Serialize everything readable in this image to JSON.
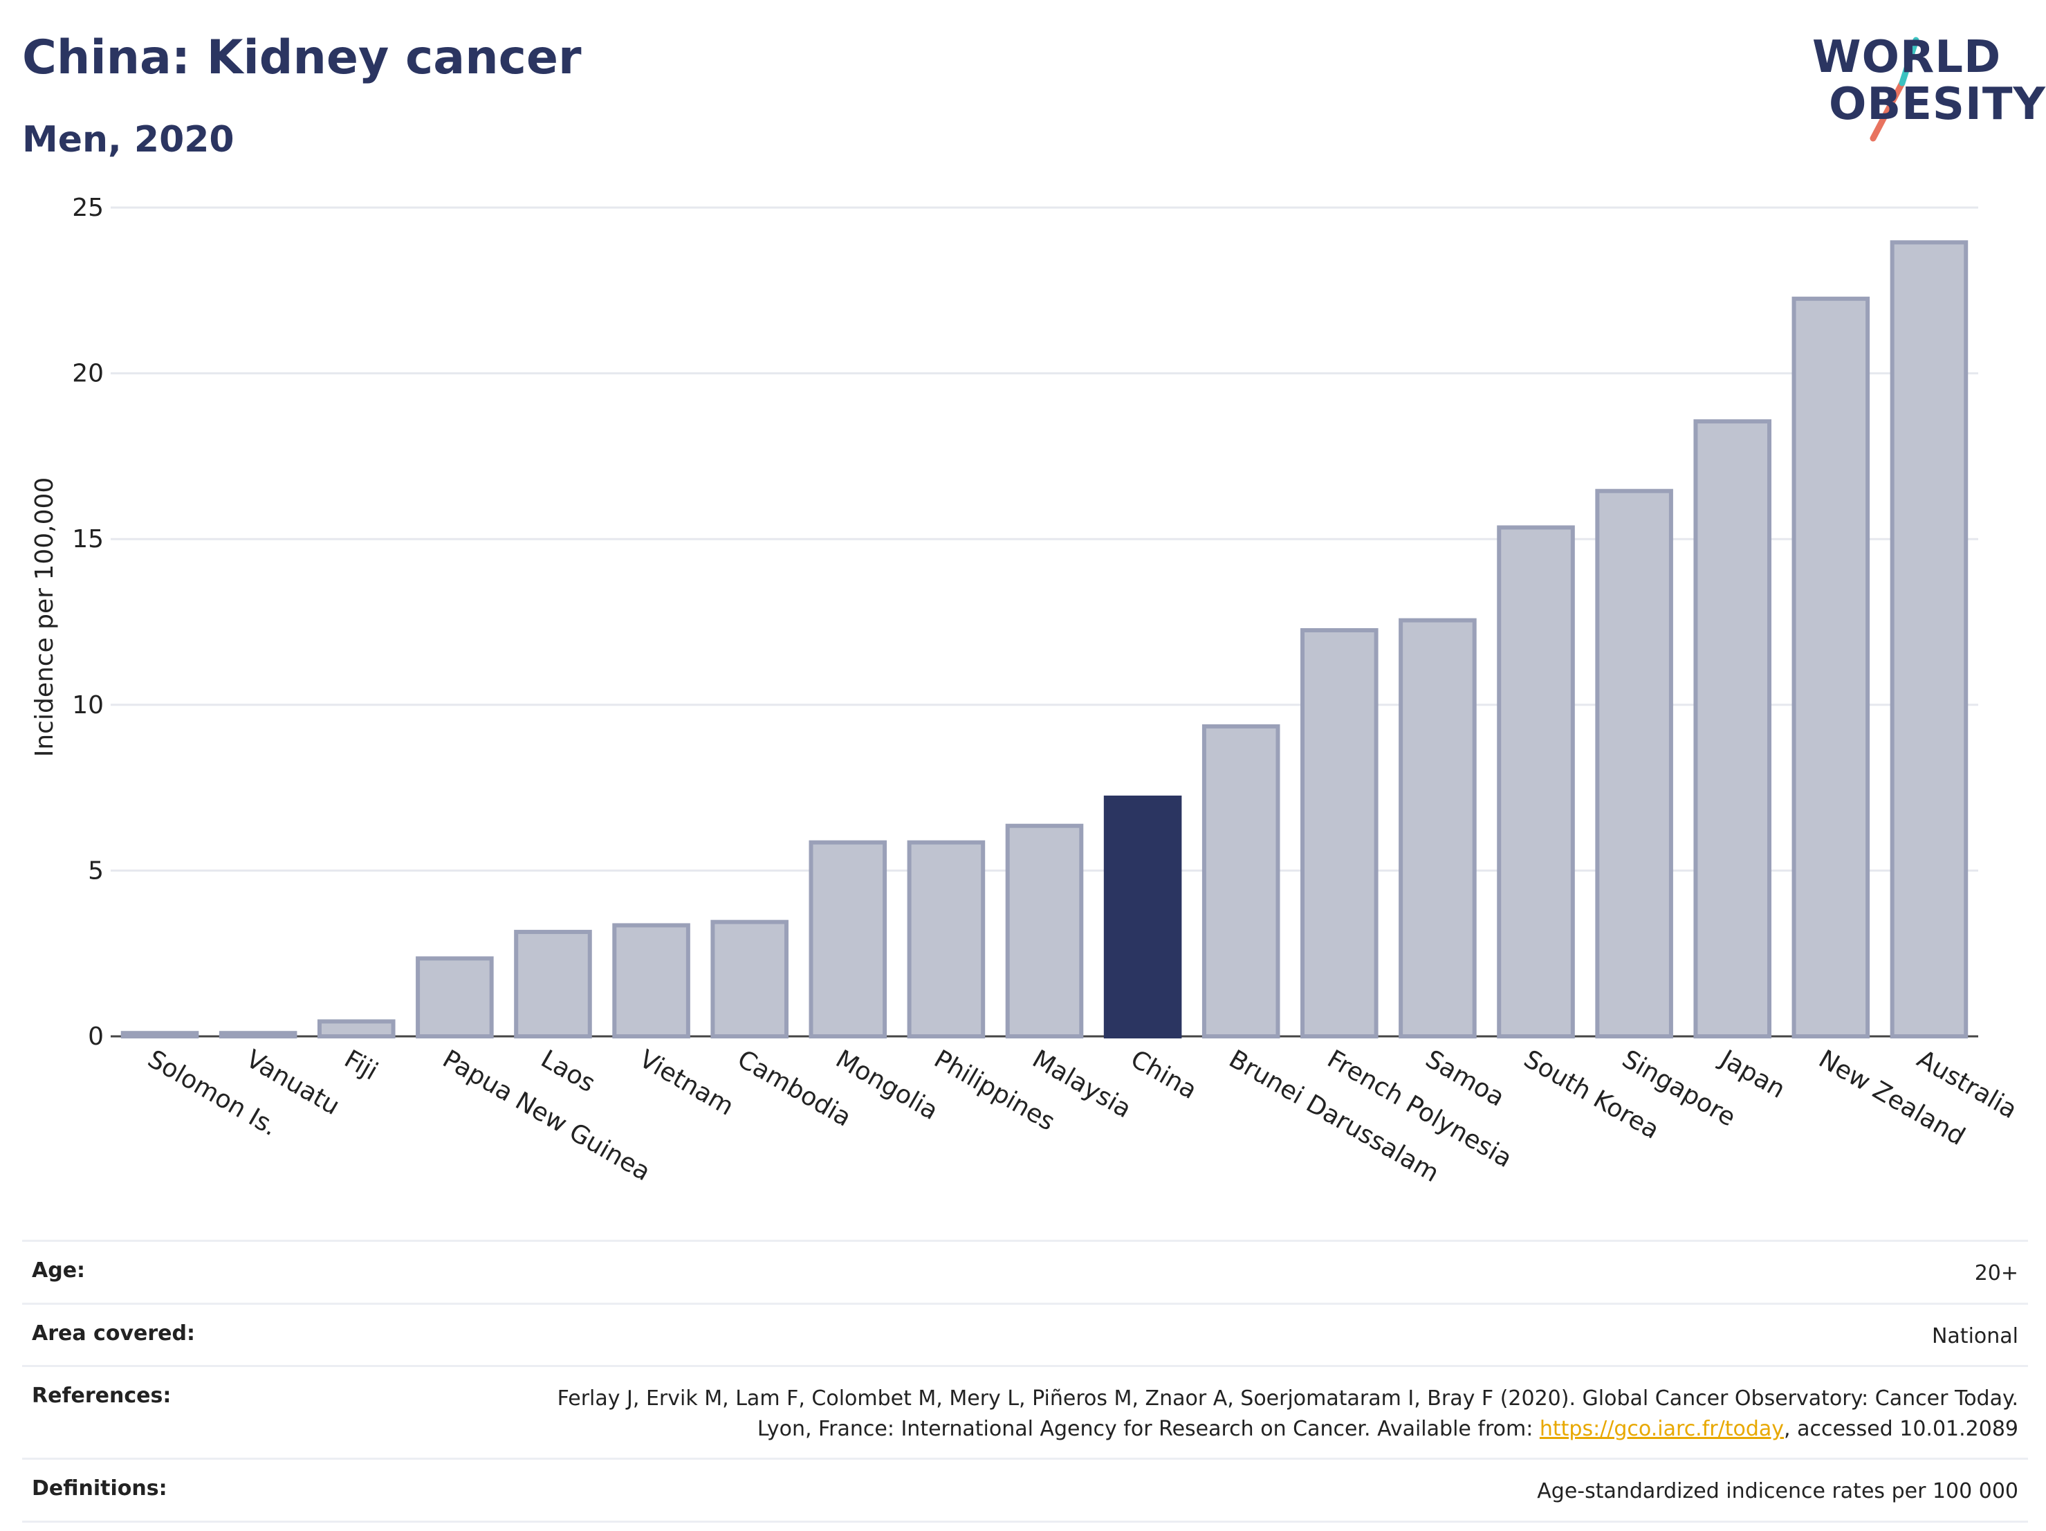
{
  "header": {
    "title": "China: Kidney cancer",
    "subtitle": "Men, 2020"
  },
  "logo": {
    "line1": "WORLD",
    "line2": "OBESITY"
  },
  "colors": {
    "highlight": "#2b3561",
    "bar_fill": "#bfc3d0",
    "bar_stroke": "#9aa0b8",
    "grid": "#e6e8ee"
  },
  "chart_data": {
    "type": "bar",
    "title": "China: Kidney cancer",
    "subtitle": "Men, 2020",
    "ylabel": "Incidence per 100,000",
    "xlabel": "",
    "ylim": [
      0,
      25
    ],
    "yticks": [
      0,
      5,
      10,
      15,
      20,
      25
    ],
    "grid": true,
    "highlight": "China",
    "categories": [
      "Solomon Is.",
      "Vanuatu",
      "Fiji",
      "Papua New Guinea",
      "Laos",
      "Vietnam",
      "Cambodia",
      "Mongolia",
      "Philippines",
      "Malaysia",
      "China",
      "Brunei Darussalam",
      "French Polynesia",
      "Samoa",
      "South Korea",
      "Singapore",
      "Japan",
      "New Zealand",
      "Australia"
    ],
    "values": [
      0.1,
      0.1,
      0.45,
      2.35,
      3.15,
      3.35,
      3.45,
      5.85,
      5.85,
      6.35,
      7.2,
      9.35,
      12.25,
      12.55,
      15.35,
      16.45,
      18.55,
      22.25,
      23.95
    ]
  },
  "meta": [
    {
      "label": "Age:",
      "value": "20+"
    },
    {
      "label": "Area covered:",
      "value": "National"
    },
    {
      "label": "References:",
      "value_before": "Ferlay J, Ervik M, Lam F, Colombet M, Mery L, Piñeros M, Znaor A, Soerjomataram I, Bray F (2020). Global Cancer Observatory: Cancer Today. Lyon, France: International Agency for Research on Cancer. Available from: ",
      "link": "https://gco.iarc.fr/today",
      "value_after": ", accessed 10.01.2089"
    },
    {
      "label": "Definitions:",
      "value": "Age-standardized indicence rates per 100 000"
    }
  ]
}
